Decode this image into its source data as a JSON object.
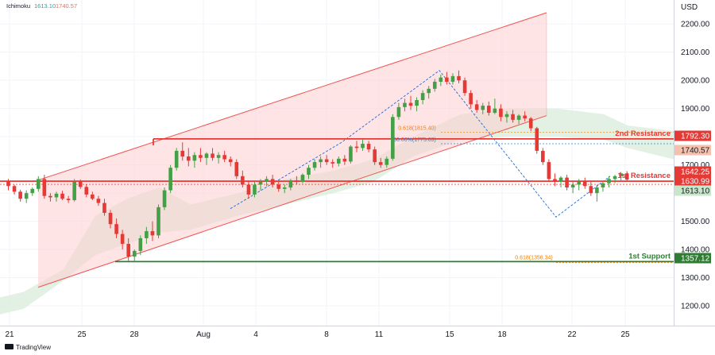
{
  "indicator": {
    "name": "Ichimoku",
    "value1": "1613.10",
    "value2": "1740.57",
    "color1": "#26a69a",
    "color2": "#ef6c52"
  },
  "axis_currency": "USD",
  "brand": "TradingView",
  "chart_data": {
    "type": "candlestick",
    "y_axis": {
      "unit": "USD",
      "min": 1130,
      "max": 2285,
      "ticks": [
        1200,
        1300,
        1400,
        1500,
        1600,
        1700,
        1800,
        1900,
        2000,
        2100,
        2200
      ]
    },
    "x_axis": {
      "labels": [
        "21",
        "25",
        "28",
        "Aug",
        "4",
        "8",
        "11",
        "15",
        "18",
        "22",
        "25"
      ]
    },
    "horizontal_levels": [
      {
        "name": "2nd Resistance",
        "value": 1792.3,
        "tag": "1792.30",
        "color": "#e53935"
      },
      {
        "name": "1st Resistance",
        "value": 1642.25,
        "tag": "1642.25",
        "color": "#e53935"
      },
      {
        "name": "1st Support",
        "value": 1357.12,
        "tag": "1357.12",
        "color": "#2e7d32"
      }
    ],
    "price_tags": [
      {
        "value": 1740.57,
        "tag": "1740.57",
        "bg": "#f6c1ac",
        "fg": "#131722"
      },
      {
        "value": 1630.99,
        "tag": "1630.99",
        "bg": "#e53935",
        "fg": "#ffffff"
      },
      {
        "value": 1613.1,
        "tag": "1613.10",
        "bg": "#c8e6c9",
        "fg": "#131722"
      }
    ],
    "fib_labels": [
      {
        "text": "0.618(1815.40)",
        "value": 1815.4,
        "color": "#f57c00"
      },
      {
        "text": "50.00%(1775.03)",
        "value": 1775.03,
        "color": "#1e88e5"
      },
      {
        "text": "0.618(1356.34)",
        "value": 1356.34,
        "color": "#f57c00"
      }
    ],
    "channel": {
      "color": "#ef5350",
      "fill": "#ffcdd2",
      "upper": [
        [
          0,
          1646
        ],
        [
          106,
          2240
        ]
      ],
      "lower": [
        [
          0,
          1266
        ],
        [
          106,
          1875
        ]
      ]
    },
    "candles": [
      [
        1640,
        1650,
        1610,
        1625
      ],
      [
        1625,
        1630,
        1595,
        1605
      ],
      [
        1605,
        1612,
        1570,
        1580
      ],
      [
        1580,
        1610,
        1565,
        1600
      ],
      [
        1600,
        1620,
        1590,
        1615
      ],
      [
        1615,
        1660,
        1605,
        1650
      ],
      [
        1650,
        1665,
        1580,
        1590
      ],
      [
        1590,
        1600,
        1570,
        1585
      ],
      [
        1585,
        1605,
        1570,
        1598
      ],
      [
        1598,
        1608,
        1575,
        1580
      ],
      [
        1580,
        1590,
        1565,
        1575
      ],
      [
        1575,
        1650,
        1570,
        1640
      ],
      [
        1640,
        1648,
        1615,
        1622
      ],
      [
        1622,
        1630,
        1585,
        1595
      ],
      [
        1595,
        1605,
        1575,
        1580
      ],
      [
        1580,
        1590,
        1555,
        1565
      ],
      [
        1565,
        1580,
        1520,
        1530
      ],
      [
        1530,
        1540,
        1475,
        1490
      ],
      [
        1490,
        1510,
        1440,
        1455
      ],
      [
        1455,
        1470,
        1400,
        1420
      ],
      [
        1420,
        1440,
        1360,
        1375
      ],
      [
        1375,
        1400,
        1357,
        1395
      ],
      [
        1395,
        1450,
        1380,
        1440
      ],
      [
        1440,
        1480,
        1420,
        1465
      ],
      [
        1465,
        1500,
        1430,
        1450
      ],
      [
        1450,
        1560,
        1440,
        1550
      ],
      [
        1550,
        1620,
        1540,
        1610
      ],
      [
        1610,
        1700,
        1600,
        1690
      ],
      [
        1690,
        1760,
        1680,
        1750
      ],
      [
        1750,
        1780,
        1715,
        1730
      ],
      [
        1730,
        1760,
        1695,
        1715
      ],
      [
        1715,
        1745,
        1690,
        1735
      ],
      [
        1735,
        1760,
        1710,
        1725
      ],
      [
        1725,
        1745,
        1700,
        1740
      ],
      [
        1740,
        1760,
        1715,
        1725
      ],
      [
        1725,
        1745,
        1705,
        1735
      ],
      [
        1735,
        1750,
        1710,
        1720
      ],
      [
        1720,
        1730,
        1695,
        1710
      ],
      [
        1710,
        1720,
        1650,
        1660
      ],
      [
        1660,
        1680,
        1620,
        1630
      ],
      [
        1630,
        1645,
        1580,
        1595
      ],
      [
        1595,
        1640,
        1585,
        1630
      ],
      [
        1630,
        1650,
        1610,
        1640
      ],
      [
        1640,
        1660,
        1625,
        1650
      ],
      [
        1650,
        1665,
        1620,
        1630
      ],
      [
        1630,
        1645,
        1605,
        1615
      ],
      [
        1615,
        1630,
        1600,
        1620
      ],
      [
        1620,
        1650,
        1610,
        1645
      ],
      [
        1645,
        1660,
        1630,
        1640
      ],
      [
        1640,
        1670,
        1635,
        1665
      ],
      [
        1665,
        1700,
        1650,
        1690
      ],
      [
        1690,
        1720,
        1680,
        1710
      ],
      [
        1710,
        1730,
        1690,
        1720
      ],
      [
        1720,
        1735,
        1700,
        1710
      ],
      [
        1710,
        1720,
        1690,
        1705
      ],
      [
        1705,
        1730,
        1695,
        1722
      ],
      [
        1722,
        1735,
        1700,
        1712
      ],
      [
        1712,
        1770,
        1705,
        1765
      ],
      [
        1765,
        1785,
        1745,
        1760
      ],
      [
        1760,
        1790,
        1750,
        1775
      ],
      [
        1775,
        1785,
        1745,
        1755
      ],
      [
        1755,
        1765,
        1700,
        1710
      ],
      [
        1710,
        1725,
        1690,
        1700
      ],
      [
        1700,
        1730,
        1690,
        1722
      ],
      [
        1722,
        1880,
        1715,
        1870
      ],
      [
        1870,
        1920,
        1860,
        1905
      ],
      [
        1905,
        1935,
        1890,
        1920
      ],
      [
        1920,
        1945,
        1895,
        1910
      ],
      [
        1910,
        1940,
        1890,
        1930
      ],
      [
        1930,
        1965,
        1915,
        1955
      ],
      [
        1955,
        1980,
        1935,
        1970
      ],
      [
        1970,
        2005,
        1960,
        1995
      ],
      [
        1995,
        2020,
        1980,
        2010
      ],
      [
        2010,
        2030,
        1985,
        1995
      ],
      [
        1995,
        2025,
        1985,
        2015
      ],
      [
        2015,
        2035,
        1990,
        2000
      ],
      [
        2000,
        2010,
        1945,
        1955
      ],
      [
        1955,
        1965,
        1900,
        1915
      ],
      [
        1915,
        1930,
        1885,
        1895
      ],
      [
        1895,
        1920,
        1880,
        1910
      ],
      [
        1910,
        1925,
        1875,
        1885
      ],
      [
        1885,
        1935,
        1880,
        1900
      ],
      [
        1900,
        1915,
        1855,
        1870
      ],
      [
        1870,
        1890,
        1850,
        1880
      ],
      [
        1880,
        1895,
        1850,
        1860
      ],
      [
        1860,
        1880,
        1845,
        1875
      ],
      [
        1875,
        1890,
        1855,
        1865
      ],
      [
        1865,
        1870,
        1820,
        1830
      ],
      [
        1830,
        1835,
        1740,
        1750
      ],
      [
        1750,
        1760,
        1700,
        1710
      ],
      [
        1710,
        1720,
        1640,
        1650
      ],
      [
        1650,
        1670,
        1625,
        1640
      ],
      [
        1640,
        1660,
        1620,
        1655
      ],
      [
        1655,
        1665,
        1610,
        1620
      ],
      [
        1620,
        1640,
        1600,
        1630
      ],
      [
        1630,
        1650,
        1610,
        1640
      ],
      [
        1640,
        1655,
        1615,
        1625
      ],
      [
        1625,
        1640,
        1590,
        1600
      ],
      [
        1600,
        1630,
        1570,
        1620
      ],
      [
        1620,
        1640,
        1605,
        1635
      ],
      [
        1635,
        1660,
        1620,
        1650
      ],
      [
        1650,
        1665,
        1635,
        1660
      ],
      [
        1660,
        1675,
        1645,
        1670
      ],
      [
        1670,
        1678,
        1640,
        1648
      ]
    ]
  }
}
